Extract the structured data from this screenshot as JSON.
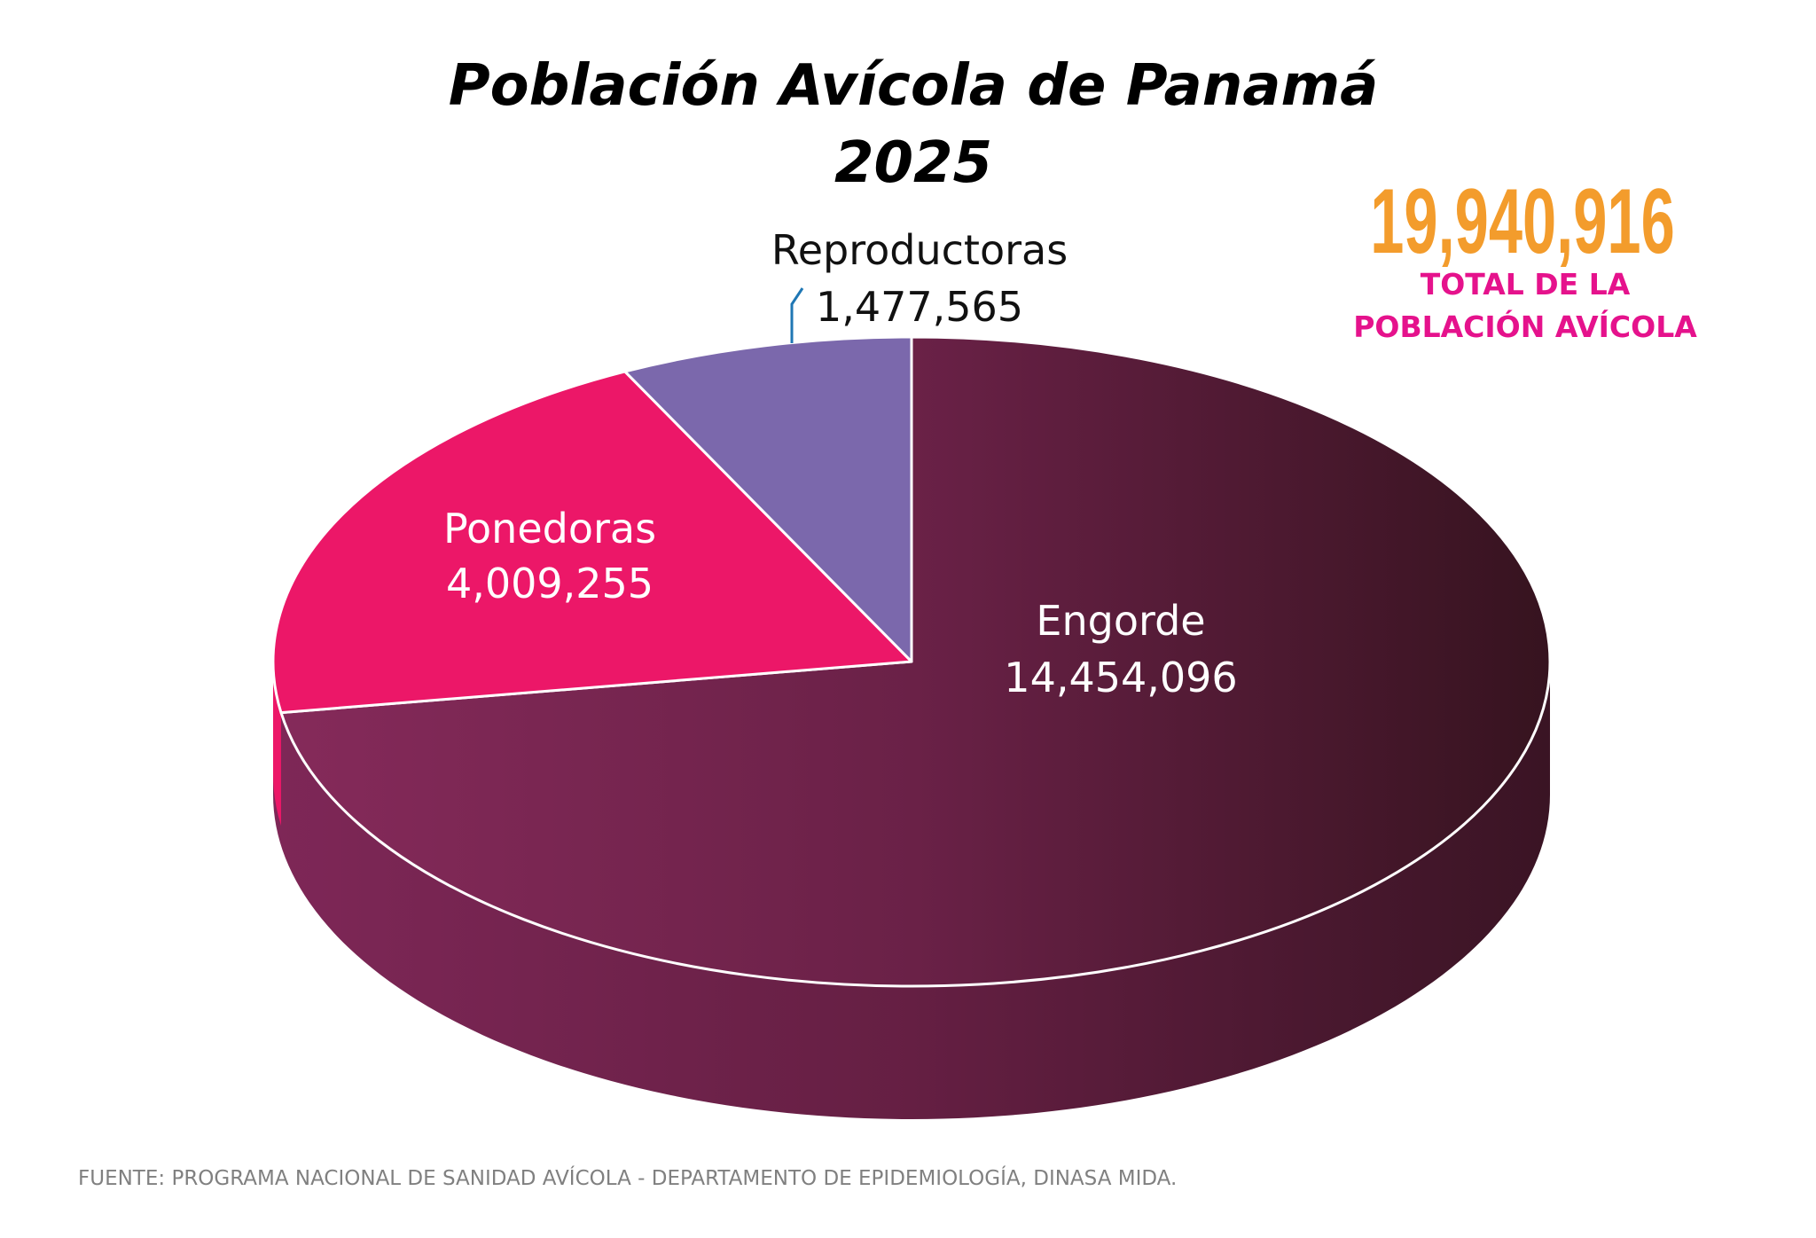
{
  "chart_data": {
    "type": "pie",
    "style": "3d",
    "title": "Población Avícola de Panamá",
    "subtitle": "2025",
    "slices": [
      {
        "label": "Engorde",
        "value": 14454096,
        "value_text": "14,454,096",
        "color": "#6e2249"
      },
      {
        "label": "Ponedoras",
        "value": 4009255,
        "value_text": "4,009,255",
        "color": "#ec1768"
      },
      {
        "label": "Reproductoras",
        "value": 1477565,
        "value_text": "1,477,565",
        "color": "#7b68ac"
      }
    ],
    "total": {
      "value_text": "19,940,916",
      "label_line1": "TOTAL DE LA",
      "label_line2": "POBLACIÓN AVÍCOLA",
      "color": "#f39c2c",
      "label_color": "#e5128c"
    },
    "source": "FUENTE: PROGRAMA NACIONAL DE SANIDAD AVÍCOLA -  DEPARTAMENTO DE EPIDEMIOLOGÍA, DINASA MIDA.",
    "leader_color": "#1f77b4"
  }
}
